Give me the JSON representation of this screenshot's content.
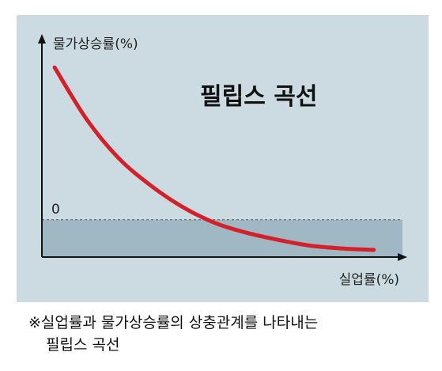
{
  "chart_data": {
    "type": "line",
    "title": "필립스 곡선",
    "xlabel": "실업률(%)",
    "ylabel": "물가상승률(%)",
    "y_reference": {
      "value": 0,
      "label": "0",
      "style": "dashed"
    },
    "series": [
      {
        "color": "#d4202a",
        "x": [
          0,
          1,
          2,
          3,
          4,
          5,
          6,
          7,
          8,
          9,
          10
        ],
        "y": [
          10.6,
          7.0,
          4.3,
          2.4,
          0.9,
          -0.2,
          -0.9,
          -1.4,
          -1.8,
          -2.0,
          -2.1
        ]
      }
    ],
    "xlim": [
      -0.4,
      10.9
    ],
    "ylim": [
      -2.6,
      12.6
    ],
    "below_zero_fill_color": "#9fb8c3",
    "grid": false,
    "legend": "none"
  },
  "caption": {
    "line1": "※실업률과 물가상승률의 상충관계를 나타내는",
    "line2": "필립스 곡선"
  },
  "colors": {
    "panel_bg": "#cbdbe1",
    "axis": "#111111",
    "curve": "#d4202a"
  }
}
